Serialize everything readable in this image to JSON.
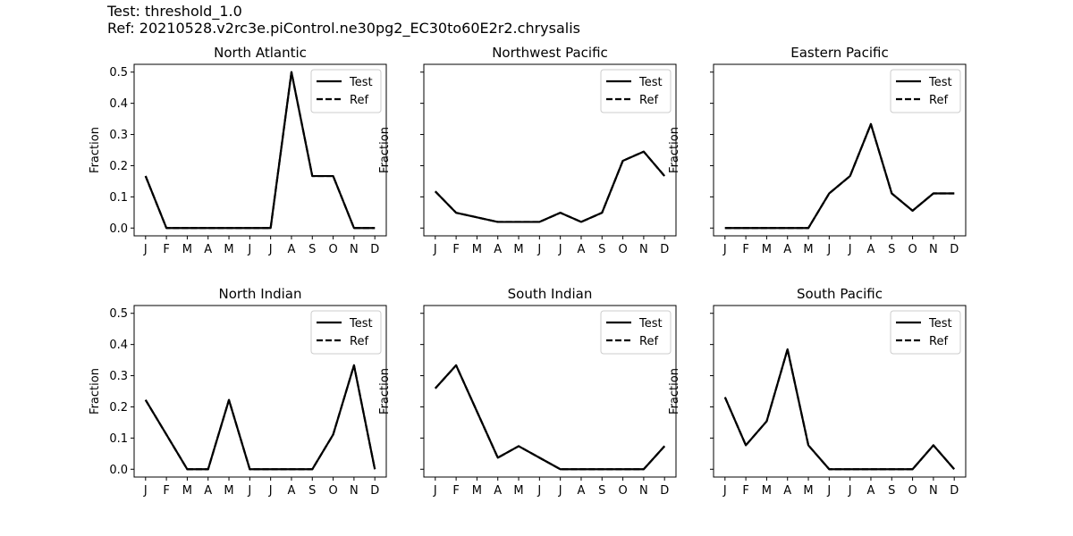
{
  "header": {
    "test_line": "Test: threshold_1.0",
    "ref_line": "Ref: 20210528.v2rc3e.piControl.ne30pg2_EC30to60E2r2.chrysalis"
  },
  "colors": {
    "line": "#000000",
    "axes": "#000000",
    "background": "#ffffff"
  },
  "chart_data": [
    {
      "type": "line",
      "title": "North Atlantic",
      "ylabel": "Fraction",
      "xlabel": "",
      "categories": [
        "J",
        "F",
        "M",
        "A",
        "M",
        "J",
        "J",
        "A",
        "S",
        "O",
        "N",
        "D"
      ],
      "ylim": [
        -0.025,
        0.525
      ],
      "yticks": [
        0.0,
        0.1,
        0.2,
        0.3,
        0.4,
        0.5
      ],
      "show_ytick_labels": true,
      "legend": "top-right",
      "grid": false,
      "series": [
        {
          "name": "Test",
          "style": "solid",
          "values": [
            0.1667,
            0,
            0,
            0,
            0,
            0,
            0,
            0.5,
            0.1667,
            0.1667,
            0,
            0
          ]
        },
        {
          "name": "Ref",
          "style": "dashed",
          "values": [
            0.1667,
            0,
            0,
            0,
            0,
            0,
            0,
            0.5,
            0.1667,
            0.1667,
            0,
            0
          ]
        }
      ]
    },
    {
      "type": "line",
      "title": "Northwest Pacific",
      "ylabel": "Fraction",
      "xlabel": "",
      "categories": [
        "J",
        "F",
        "M",
        "A",
        "M",
        "J",
        "J",
        "A",
        "S",
        "O",
        "N",
        "D"
      ],
      "ylim": [
        -0.025,
        0.525
      ],
      "yticks": [
        0.0,
        0.1,
        0.2,
        0.3,
        0.4,
        0.5
      ],
      "show_ytick_labels": false,
      "legend": "top-right",
      "grid": false,
      "series": [
        {
          "name": "Test",
          "style": "solid",
          "values": [
            0.1176,
            0.049,
            0.0343,
            0.0196,
            0.0196,
            0.0196,
            0.049,
            0.0196,
            0.049,
            0.2157,
            0.2451,
            0.1667
          ]
        },
        {
          "name": "Ref",
          "style": "dashed",
          "values": [
            0.1176,
            0.049,
            0.0343,
            0.0196,
            0.0196,
            0.0196,
            0.049,
            0.0196,
            0.049,
            0.2157,
            0.2451,
            0.1667
          ]
        }
      ]
    },
    {
      "type": "line",
      "title": "Eastern Pacific",
      "ylabel": "Fraction",
      "xlabel": "",
      "categories": [
        "J",
        "F",
        "M",
        "A",
        "M",
        "J",
        "J",
        "A",
        "S",
        "O",
        "N",
        "D"
      ],
      "ylim": [
        -0.025,
        0.525
      ],
      "yticks": [
        0.0,
        0.1,
        0.2,
        0.3,
        0.4,
        0.5
      ],
      "show_ytick_labels": false,
      "legend": "top-right",
      "grid": false,
      "series": [
        {
          "name": "Test",
          "style": "solid",
          "values": [
            0,
            0,
            0,
            0,
            0,
            0.1111,
            0.1667,
            0.3333,
            0.1111,
            0.0556,
            0.1111,
            0.1111
          ]
        },
        {
          "name": "Ref",
          "style": "dashed",
          "values": [
            0,
            0,
            0,
            0,
            0,
            0.1111,
            0.1667,
            0.3333,
            0.1111,
            0.0556,
            0.1111,
            0.1111
          ]
        }
      ]
    },
    {
      "type": "line",
      "title": "North Indian",
      "ylabel": "Fraction",
      "xlabel": "",
      "categories": [
        "J",
        "F",
        "M",
        "A",
        "M",
        "J",
        "J",
        "A",
        "S",
        "O",
        "N",
        "D"
      ],
      "ylim": [
        -0.025,
        0.525
      ],
      "yticks": [
        0.0,
        0.1,
        0.2,
        0.3,
        0.4,
        0.5
      ],
      "show_ytick_labels": true,
      "legend": "top-right",
      "grid": false,
      "series": [
        {
          "name": "Test",
          "style": "solid",
          "values": [
            0.2222,
            0.1111,
            0,
            0,
            0.2222,
            0,
            0,
            0,
            0,
            0.1111,
            0.3333,
            0
          ]
        },
        {
          "name": "Ref",
          "style": "dashed",
          "values": [
            0.2222,
            0.1111,
            0,
            0,
            0.2222,
            0,
            0,
            0,
            0,
            0.1111,
            0.3333,
            0
          ]
        }
      ]
    },
    {
      "type": "line",
      "title": "South Indian",
      "ylabel": "Fraction",
      "xlabel": "",
      "categories": [
        "J",
        "F",
        "M",
        "A",
        "M",
        "J",
        "J",
        "A",
        "S",
        "O",
        "N",
        "D"
      ],
      "ylim": [
        -0.025,
        0.525
      ],
      "yticks": [
        0.0,
        0.1,
        0.2,
        0.3,
        0.4,
        0.5
      ],
      "show_ytick_labels": false,
      "legend": "top-right",
      "grid": false,
      "series": [
        {
          "name": "Test",
          "style": "solid",
          "values": [
            0.2593,
            0.3333,
            0.1852,
            0.037,
            0.0741,
            0.037,
            0,
            0,
            0,
            0,
            0,
            0.0741
          ]
        },
        {
          "name": "Ref",
          "style": "dashed",
          "values": [
            0.2593,
            0.3333,
            0.1852,
            0.037,
            0.0741,
            0.037,
            0,
            0,
            0,
            0,
            0,
            0.0741
          ]
        }
      ]
    },
    {
      "type": "line",
      "title": "South Pacific",
      "ylabel": "Fraction",
      "xlabel": "",
      "categories": [
        "J",
        "F",
        "M",
        "A",
        "M",
        "J",
        "J",
        "A",
        "S",
        "O",
        "N",
        "D"
      ],
      "ylim": [
        -0.025,
        0.525
      ],
      "yticks": [
        0.0,
        0.1,
        0.2,
        0.3,
        0.4,
        0.5
      ],
      "show_ytick_labels": false,
      "legend": "top-right",
      "grid": false,
      "series": [
        {
          "name": "Test",
          "style": "solid",
          "values": [
            0.2308,
            0.0769,
            0.1538,
            0.3846,
            0.0769,
            0,
            0,
            0,
            0,
            0,
            0.0769,
            0
          ]
        },
        {
          "name": "Ref",
          "style": "dashed",
          "values": [
            0.2308,
            0.0769,
            0.1538,
            0.3846,
            0.0769,
            0,
            0,
            0,
            0,
            0,
            0.0769,
            0
          ]
        }
      ]
    }
  ]
}
